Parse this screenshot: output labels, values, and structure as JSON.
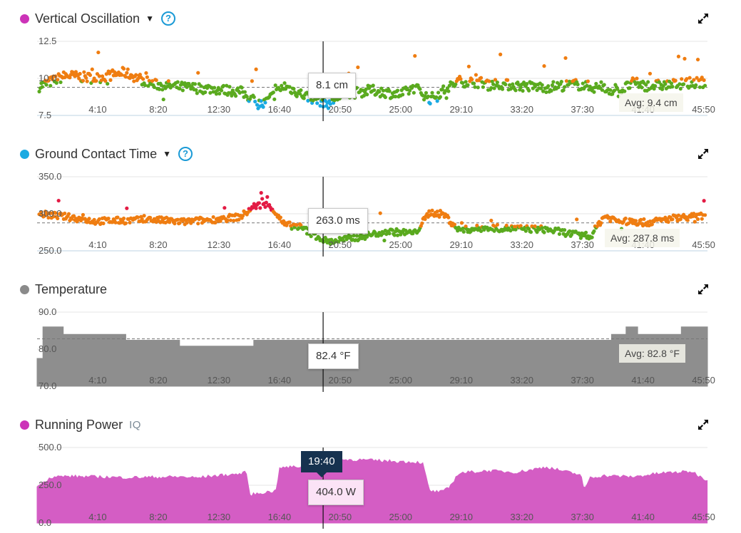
{
  "colors": {
    "purple": "#cc33b8",
    "blue": "#1aaae2",
    "gray": "#8a8a8a",
    "orange": "#ef7d11",
    "green": "#5aaa1f",
    "red": "#e31b44",
    "area_gray": "#8e8e8e",
    "area_magenta": "#d45dc4"
  },
  "x_ticks": [
    "4:10",
    "8:20",
    "12:30",
    "16:40",
    "20:50",
    "25:00",
    "29:10",
    "33:20",
    "37:30",
    "41:40",
    "45:50"
  ],
  "hover_time": "19:40",
  "charts": [
    {
      "id": "vo",
      "title": "Vertical Oscillation",
      "dot_color": "#cc33b8",
      "has_dropdown": true,
      "has_help": true,
      "y_ticks": [
        "12.5",
        "10.0",
        "7.5"
      ],
      "tooltip": "8.1 cm",
      "avg_label": "Avg: 9.4 cm"
    },
    {
      "id": "gct",
      "title": "Ground Contact Time",
      "dot_color": "#1aaae2",
      "has_dropdown": true,
      "has_help": true,
      "y_ticks": [
        "350.0",
        "300.0",
        "250.0"
      ],
      "tooltip": "263.0 ms",
      "avg_label": "Avg: 287.8 ms"
    },
    {
      "id": "temp",
      "title": "Temperature",
      "dot_color": "#8a8a8a",
      "y_ticks": [
        "90.0",
        "80.0",
        "70.0"
      ],
      "tooltip": "82.4 °F",
      "avg_label": "Avg: 82.8 °F"
    },
    {
      "id": "power",
      "title": "Running Power",
      "iq_badge": "IQ",
      "dot_color": "#cc33b8",
      "y_ticks": [
        "500.0",
        "250.0",
        "0.0"
      ],
      "tooltip": "404.0 W"
    }
  ],
  "chart_data": [
    {
      "type": "scatter",
      "title": "Vertical Oscillation",
      "x_unit": "minutes",
      "ylim": [
        7.5,
        12.5
      ],
      "y_unit": "cm",
      "avg": 9.4,
      "hover": {
        "x": 19.67,
        "y": 8.1
      },
      "series_profile": {
        "x": [
          0,
          2,
          4,
          6,
          8,
          10,
          12,
          14,
          15.5,
          17,
          18.5,
          20,
          21,
          23,
          25,
          26,
          27,
          28,
          29,
          31,
          33,
          35,
          37,
          39,
          40,
          41,
          42,
          44,
          46
        ],
        "y": [
          9.4,
          10.2,
          10.0,
          10.4,
          9.6,
          9.4,
          9.3,
          9.1,
          8.2,
          9.5,
          8.8,
          8.3,
          8.9,
          9.2,
          8.9,
          9.4,
          8.6,
          9.2,
          9.8,
          9.7,
          9.5,
          9.4,
          9.6,
          9.3,
          9.1,
          9.7,
          9.5,
          9.6,
          9.8
        ]
      }
    },
    {
      "type": "scatter",
      "title": "Ground Contact Time",
      "x_unit": "minutes",
      "ylim": [
        250,
        350
      ],
      "y_unit": "ms",
      "avg": 287.8,
      "hover": {
        "x": 19.67,
        "y": 263.0
      },
      "series_profile": {
        "x": [
          0,
          2,
          4,
          6,
          8,
          10,
          12,
          14,
          15,
          16,
          17,
          18,
          19,
          20,
          22,
          24,
          26,
          27,
          28,
          29,
          31,
          33,
          35,
          37,
          38,
          39,
          40,
          42,
          44,
          46
        ],
        "y": [
          300,
          296,
          290,
          291,
          292,
          289,
          292,
          296,
          311,
          312,
          285,
          283,
          272,
          262,
          268,
          276,
          274,
          302,
          299,
          278,
          281,
          280,
          279,
          272,
          268,
          297,
          290,
          288,
          295,
          297
        ]
      }
    },
    {
      "type": "area",
      "title": "Temperature",
      "x_unit": "minutes",
      "ylim": [
        70,
        90
      ],
      "y_unit": "°F",
      "avg": 82.8,
      "hover": {
        "x": 19.67,
        "y": 82.4
      },
      "x": [
        0,
        0.4,
        0.4,
        1.8,
        1.8,
        6.1,
        6.1,
        9.8,
        9.8,
        14.9,
        14.9,
        39.5,
        39.5,
        40.5,
        40.5,
        41.3,
        41.3,
        44.3,
        44.3,
        46.1
      ],
      "y": [
        77.5,
        77.5,
        86.0,
        86.0,
        84.0,
        84.0,
        82.4,
        82.4,
        80.8,
        80.8,
        82.4,
        82.4,
        84.0,
        84.0,
        86.0,
        86.0,
        84.0,
        84.0,
        86.0,
        86.0
      ]
    },
    {
      "type": "area",
      "title": "Running Power",
      "x_unit": "minutes",
      "ylim": [
        0,
        500
      ],
      "y_unit": "W",
      "hover": {
        "x": 19.67,
        "y": 404.0
      },
      "x": [
        0,
        0.5,
        1,
        2,
        4,
        6,
        8,
        10,
        11,
        12,
        14,
        14.4,
        14.6,
        15.5,
        16.4,
        16.7,
        18,
        19.67,
        20,
        22,
        24,
        26,
        26.5,
        27,
        27.8,
        28.3,
        29,
        31,
        33,
        35,
        37,
        37.4,
        37.6,
        38,
        39,
        41,
        43,
        45,
        46.1
      ],
      "y": [
        240,
        275,
        305,
        308,
        305,
        300,
        302,
        305,
        298,
        310,
        325,
        335,
        185,
        200,
        210,
        365,
        372,
        404,
        418,
        418,
        410,
        402,
        398,
        210,
        205,
        230,
        330,
        345,
        335,
        370,
        325,
        322,
        210,
        300,
        312,
        305,
        330,
        340,
        280
      ]
    }
  ]
}
